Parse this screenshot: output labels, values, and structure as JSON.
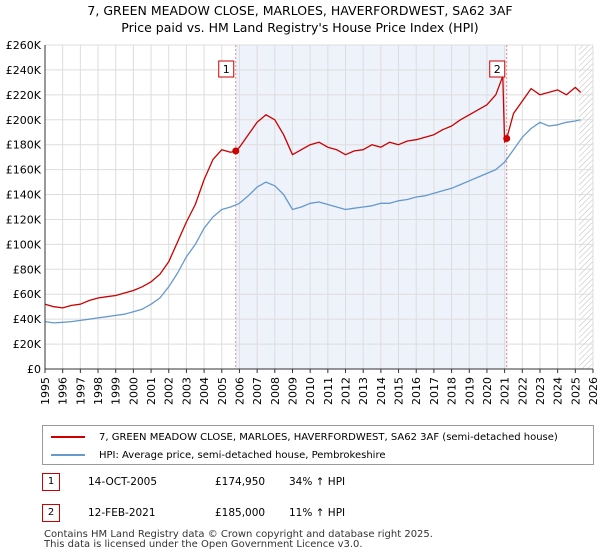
{
  "title_line1": "7, GREEN MEADOW CLOSE, MARLOES, HAVERFORDWEST, SA62 3AF",
  "title_line2": "Price paid vs. HM Land Registry's House Price Index (HPI)",
  "colors": {
    "property": "#cc0000",
    "hpi": "#6699cc",
    "marker_line": "#e88888",
    "grid": "#dddddd",
    "plot_bg": "#eef2fb"
  },
  "chart_data": {
    "type": "line",
    "title": "Price paid vs. HM Land Registry's House Price Index (HPI)",
    "xlim": [
      1995,
      2026
    ],
    "ylim": [
      0,
      260000
    ],
    "x_ticks": [
      1995,
      1996,
      1997,
      1998,
      1999,
      2000,
      2001,
      2002,
      2003,
      2004,
      2005,
      2006,
      2007,
      2008,
      2009,
      2010,
      2011,
      2012,
      2013,
      2014,
      2015,
      2016,
      2017,
      2018,
      2019,
      2020,
      2021,
      2022,
      2023,
      2024,
      2025,
      2026
    ],
    "y_ticks": [
      0,
      20000,
      40000,
      60000,
      80000,
      100000,
      120000,
      140000,
      160000,
      180000,
      200000,
      220000,
      240000,
      260000
    ],
    "y_tick_labels": [
      "£0",
      "£20K",
      "£40K",
      "£60K",
      "£80K",
      "£100K",
      "£120K",
      "£140K",
      "£160K",
      "£180K",
      "£200K",
      "£220K",
      "£240K",
      "£260K"
    ],
    "shaded_region": [
      2005.79,
      2021.12
    ],
    "hatched_from": 2025.2,
    "series": [
      {
        "name": "7, GREEN MEADOW CLOSE, MARLOES, HAVERFORDWEST, SA62 3AF (semi-detached house)",
        "x": [
          1995,
          1995.5,
          1996,
          1996.5,
          1997,
          1997.5,
          1998,
          1998.5,
          1999,
          1999.5,
          2000,
          2000.5,
          2001,
          2001.5,
          2002,
          2002.5,
          2003,
          2003.5,
          2004,
          2004.5,
          2005,
          2005.5,
          2005.79,
          2006,
          2006.5,
          2007,
          2007.5,
          2008,
          2008.5,
          2009,
          2009.5,
          2010,
          2010.5,
          2011,
          2011.5,
          2012,
          2012.5,
          2013,
          2013.5,
          2014,
          2014.5,
          2015,
          2015.5,
          2016,
          2016.5,
          2017,
          2017.5,
          2018,
          2018.5,
          2019,
          2019.5,
          2020,
          2020.5,
          2020.9,
          2021.0,
          2021.12,
          2021.5,
          2022,
          2022.5,
          2023,
          2023.5,
          2024,
          2024.5,
          2025,
          2025.3
        ],
        "values": [
          52000,
          50000,
          49000,
          51000,
          52000,
          55000,
          57000,
          58000,
          59000,
          61000,
          63000,
          66000,
          70000,
          76000,
          86000,
          102000,
          118000,
          132000,
          152000,
          168000,
          176000,
          174000,
          174950,
          178000,
          188000,
          198000,
          204000,
          200000,
          188000,
          172000,
          176000,
          180000,
          182000,
          178000,
          176000,
          172000,
          175000,
          176000,
          180000,
          178000,
          182000,
          180000,
          183000,
          184000,
          186000,
          188000,
          192000,
          195000,
          200000,
          204000,
          208000,
          212000,
          220000,
          235000,
          182000,
          185000,
          205000,
          215000,
          225000,
          220000,
          222000,
          224000,
          220000,
          226000,
          222000
        ]
      },
      {
        "name": "HPI: Average price, semi-detached house, Pembrokeshire",
        "x": [
          1995,
          1995.5,
          1996,
          1996.5,
          1997,
          1997.5,
          1998,
          1998.5,
          1999,
          1999.5,
          2000,
          2000.5,
          2001,
          2001.5,
          2002,
          2002.5,
          2003,
          2003.5,
          2004,
          2004.5,
          2005,
          2005.5,
          2006,
          2006.5,
          2007,
          2007.5,
          2008,
          2008.5,
          2009,
          2009.5,
          2010,
          2010.5,
          2011,
          2011.5,
          2012,
          2012.5,
          2013,
          2013.5,
          2014,
          2014.5,
          2015,
          2015.5,
          2016,
          2016.5,
          2017,
          2017.5,
          2018,
          2018.5,
          2019,
          2019.5,
          2020,
          2020.5,
          2021,
          2021.5,
          2022,
          2022.5,
          2023,
          2023.5,
          2024,
          2024.5,
          2025,
          2025.3
        ],
        "values": [
          38000,
          37000,
          37500,
          38000,
          39000,
          40000,
          41000,
          42000,
          43000,
          44000,
          46000,
          48000,
          52000,
          57000,
          66000,
          77000,
          90000,
          100000,
          113000,
          122000,
          128000,
          130000,
          133000,
          139000,
          146000,
          150000,
          147000,
          140000,
          128000,
          130000,
          133000,
          134000,
          132000,
          130000,
          128000,
          129000,
          130000,
          131000,
          133000,
          133000,
          135000,
          136000,
          138000,
          139000,
          141000,
          143000,
          145000,
          148000,
          151000,
          154000,
          157000,
          160000,
          166000,
          176000,
          186000,
          193000,
          198000,
          195000,
          196000,
          198000,
          199000,
          200000
        ]
      }
    ],
    "sale_markers": [
      {
        "label": "1",
        "x": 2005.79,
        "value": 174950
      },
      {
        "label": "2",
        "x": 2021.12,
        "value": 185000
      }
    ]
  },
  "legend": {
    "property_label": "7, GREEN MEADOW CLOSE, MARLOES, HAVERFORDWEST, SA62 3AF (semi-detached house)",
    "hpi_label": "HPI: Average price, semi-detached house, Pembrokeshire"
  },
  "sales": [
    {
      "badge": "1",
      "date": "14-OCT-2005",
      "price": "£174,950",
      "hpi": "34% ↑ HPI"
    },
    {
      "badge": "2",
      "date": "12-FEB-2021",
      "price": "£185,000",
      "hpi": "11% ↑ HPI"
    }
  ],
  "footer_line1": "Contains HM Land Registry data © Crown copyright and database right 2025.",
  "footer_line2": "This data is licensed under the Open Government Licence v3.0."
}
